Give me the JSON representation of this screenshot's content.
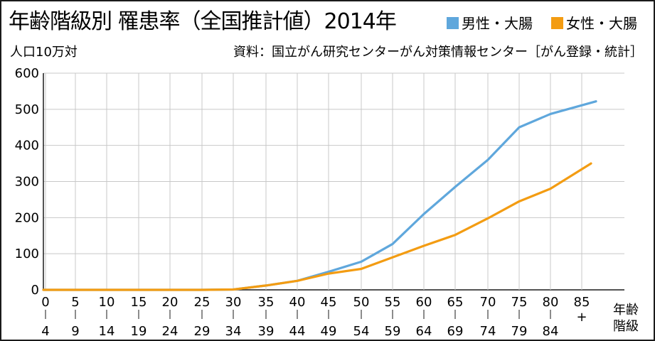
{
  "chart_data": {
    "type": "line",
    "title": "年齢階級別 罹患率（全国推計値）2014年",
    "ylabel": "人口10万対",
    "xlabel": "年齢階級",
    "source": "資料：国立がん研究センターがん対策情報センター［がん登録・統計］",
    "ylim": [
      0,
      600
    ],
    "yticks": [
      0,
      100,
      200,
      300,
      400,
      500,
      600
    ],
    "grid": true,
    "legend_position": "top-right",
    "categories": [
      {
        "top": "0",
        "bottom": "4"
      },
      {
        "top": "5",
        "bottom": "9"
      },
      {
        "top": "10",
        "bottom": "14"
      },
      {
        "top": "15",
        "bottom": "19"
      },
      {
        "top": "20",
        "bottom": "24"
      },
      {
        "top": "25",
        "bottom": "29"
      },
      {
        "top": "30",
        "bottom": "34"
      },
      {
        "top": "35",
        "bottom": "39"
      },
      {
        "top": "40",
        "bottom": "44"
      },
      {
        "top": "45",
        "bottom": "49"
      },
      {
        "top": "50",
        "bottom": "54"
      },
      {
        "top": "55",
        "bottom": "59"
      },
      {
        "top": "60",
        "bottom": "64"
      },
      {
        "top": "65",
        "bottom": "69"
      },
      {
        "top": "70",
        "bottom": "74"
      },
      {
        "top": "75",
        "bottom": "79"
      },
      {
        "top": "80",
        "bottom": "84"
      },
      {
        "top": "85",
        "bottom": "+"
      }
    ],
    "series": [
      {
        "name": "男性・大腸",
        "color": "#5fa7dc",
        "values": [
          0,
          0,
          0,
          0,
          0,
          0,
          1,
          12,
          25,
          50,
          78,
          127,
          210,
          285,
          360,
          450,
          487,
          522
        ]
      },
      {
        "name": "女性・大腸",
        "color": "#f39c12",
        "values": [
          0,
          0,
          0,
          0,
          0,
          0,
          1,
          12,
          25,
          45,
          58,
          90,
          122,
          152,
          198,
          245,
          280,
          350
        ]
      }
    ]
  }
}
